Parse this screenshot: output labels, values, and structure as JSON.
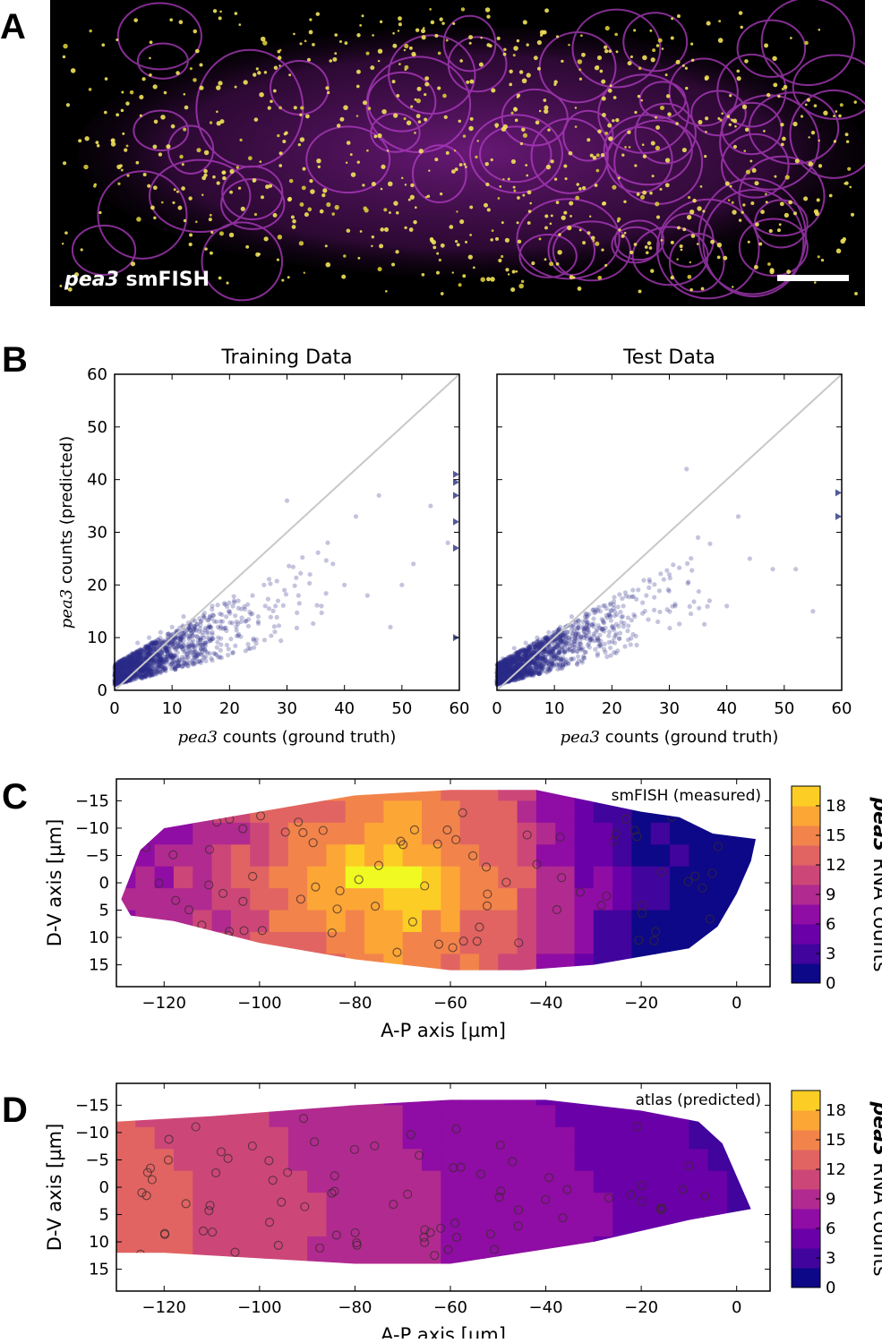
{
  "panels": {
    "a": "A",
    "b": "B",
    "c": "C",
    "d": "D"
  },
  "micrograph": {
    "gene": "pea3",
    "method": "smFISH",
    "has_scale_bar": true
  },
  "chart_data": [
    {
      "type": "scatter",
      "panel": "B-left",
      "title": "Training Data",
      "xlabel_italic": "pea3",
      "xlabel_rest": " counts (ground truth)",
      "ylabel_italic": "pea3",
      "ylabel_rest": " counts (predicted)",
      "xlim": [
        0,
        60
      ],
      "ylim": [
        0,
        60
      ],
      "xticks": [
        0,
        10,
        20,
        30,
        40,
        50,
        60
      ],
      "yticks": [
        0,
        10,
        20,
        30,
        40,
        50,
        60
      ],
      "diagonal": "y = x",
      "outliers_clipped_at_x60": [
        41,
        39.5,
        37,
        32,
        27,
        10
      ],
      "sample_points": [
        [
          0,
          2
        ],
        [
          1,
          5
        ],
        [
          2,
          3
        ],
        [
          3,
          7
        ],
        [
          4,
          9
        ],
        [
          5,
          4
        ],
        [
          6,
          10
        ],
        [
          7,
          6
        ],
        [
          8,
          11
        ],
        [
          9,
          8
        ],
        [
          10,
          12
        ],
        [
          11,
          9
        ],
        [
          12,
          14
        ],
        [
          13,
          10
        ],
        [
          14,
          8
        ],
        [
          15,
          13
        ],
        [
          16,
          11
        ],
        [
          17,
          16
        ],
        [
          18,
          12
        ],
        [
          20,
          15
        ],
        [
          22,
          13
        ],
        [
          24,
          18
        ],
        [
          25,
          14
        ],
        [
          26,
          20
        ],
        [
          28,
          16
        ],
        [
          30,
          36
        ],
        [
          32,
          18
        ],
        [
          34,
          22
        ],
        [
          36,
          16
        ],
        [
          38,
          24
        ],
        [
          40,
          20
        ],
        [
          42,
          33
        ],
        [
          44,
          18
        ],
        [
          46,
          37
        ],
        [
          48,
          12
        ],
        [
          50,
          20
        ],
        [
          52,
          24
        ],
        [
          55,
          35
        ],
        [
          58,
          28
        ]
      ]
    },
    {
      "type": "scatter",
      "panel": "B-right",
      "title": "Test Data",
      "xlabel_italic": "pea3",
      "xlabel_rest": " counts (ground truth)",
      "xlim": [
        0,
        60
      ],
      "ylim": [
        0,
        60
      ],
      "xticks": [
        0,
        10,
        20,
        30,
        40,
        50,
        60
      ],
      "diagonal": "y = x",
      "outliers_clipped_at_x60": [
        37.5,
        33
      ],
      "sample_points": [
        [
          0,
          2
        ],
        [
          1,
          6
        ],
        [
          2,
          4
        ],
        [
          3,
          8
        ],
        [
          4,
          5
        ],
        [
          5,
          9
        ],
        [
          6,
          7
        ],
        [
          7,
          10
        ],
        [
          8,
          6
        ],
        [
          9,
          11
        ],
        [
          10,
          8
        ],
        [
          11,
          12
        ],
        [
          12,
          9
        ],
        [
          13,
          14
        ],
        [
          14,
          10
        ],
        [
          15,
          13
        ],
        [
          16,
          11
        ],
        [
          18,
          15
        ],
        [
          20,
          12
        ],
        [
          22,
          16
        ],
        [
          24,
          14
        ],
        [
          26,
          18
        ],
        [
          28,
          13
        ],
        [
          30,
          22
        ],
        [
          33,
          42
        ],
        [
          35,
          29
        ],
        [
          37,
          17
        ],
        [
          40,
          16
        ],
        [
          42,
          33
        ],
        [
          44,
          25
        ],
        [
          48,
          23
        ],
        [
          52,
          23
        ],
        [
          55,
          15
        ]
      ]
    },
    {
      "type": "heatmap",
      "panel": "C",
      "annotation": "smFISH (measured)",
      "xlabel": "A-P axis [µm]",
      "ylabel": "D-V axis [µm]",
      "xticks": [
        -120,
        -100,
        -80,
        -60,
        -40,
        -20,
        0
      ],
      "yticks": [
        -15,
        -10,
        -5,
        0,
        5,
        10,
        15
      ],
      "xlim": [
        -130,
        7
      ],
      "ylim": [
        -19,
        19
      ],
      "colorbar": {
        "label_italic": "pea3",
        "label_rest": " RNA counts",
        "ticks": [
          0,
          3,
          6,
          9,
          12,
          15,
          18
        ],
        "range": [
          0,
          20
        ]
      },
      "profile_ap": [
        -128,
        -120,
        -110,
        -100,
        -90,
        -80,
        -70,
        -60,
        -50,
        -40,
        -30,
        -20,
        -10,
        0,
        5
      ],
      "profile_counts": [
        8,
        9,
        11,
        13,
        15,
        17,
        18,
        16,
        14,
        10,
        6,
        3,
        1.5,
        0.5,
        0.5
      ],
      "peak": {
        "ap": -75,
        "dv": -3,
        "count": 20
      }
    },
    {
      "type": "heatmap",
      "panel": "D",
      "annotation": "atlas (predicted)",
      "xlabel": "A-P axis [µm]",
      "ylabel": "D-V axis [µm]",
      "xticks": [
        -120,
        -100,
        -80,
        -60,
        -40,
        -20,
        0
      ],
      "yticks": [
        -15,
        -10,
        -5,
        0,
        5,
        10,
        15
      ],
      "xlim": [
        -130,
        7
      ],
      "ylim": [
        -19,
        19
      ],
      "colorbar": {
        "label_italic": "pea3",
        "label_rest": " RNA counts",
        "ticks": [
          0,
          3,
          6,
          9,
          12,
          15,
          18
        ],
        "range": [
          0,
          20
        ]
      },
      "profile_ap": [
        -130,
        -120,
        -100,
        -80,
        -60,
        -40,
        -20,
        0,
        3
      ],
      "profile_counts": [
        13,
        12.5,
        11,
        9.5,
        8,
        7,
        5.5,
        4,
        4
      ]
    }
  ]
}
